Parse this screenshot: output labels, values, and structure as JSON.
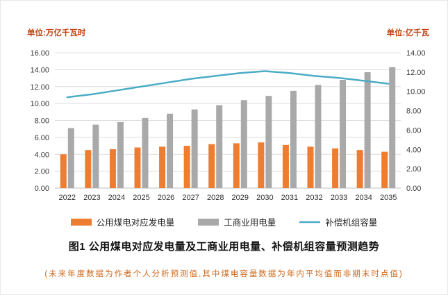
{
  "page": {
    "title": "图1  公用煤电对应发电量及工商业用电量、补偿机组容量预测趋势",
    "footnote": "(未来年度数据为作者个人分析预测值,其中煤电容量数据为年内平均值而非期末时点值)"
  },
  "colors": {
    "unit_label_text": "#c3420f",
    "footnote_text": "#cf6a1d",
    "title_text": "#141414",
    "gridline": "#dcdcdc",
    "axis_line": "#bfbfbf",
    "tick_text": "#3a3a3a"
  },
  "chart_data": {
    "type": "bar",
    "subtype": "grouped-bar-with-line",
    "title": "图1  公用煤电对应发电量及工商业用电量、补偿机组容量预测趋势",
    "footnote": "(未来年度数据为作者个人分析预测值,其中煤电容量数据为年内平均值而非期末时点值)",
    "grid": "horizontal",
    "legend_position": "bottom",
    "left_axis": {
      "unit_label": "单位:万亿千瓦时",
      "min": 0,
      "max": 16,
      "step": 2,
      "ticks": [
        "0.00",
        "2.00",
        "4.00",
        "6.00",
        "8.00",
        "10.00",
        "12.00",
        "14.00",
        "16.00"
      ]
    },
    "right_axis": {
      "unit_label": "单位:亿千瓦",
      "min": 0,
      "max": 14,
      "step": 2,
      "ticks": [
        "0.00",
        "2.00",
        "4.00",
        "6.00",
        "8.00",
        "10.00",
        "12.00",
        "14.00"
      ]
    },
    "categories": [
      "2022",
      "2023",
      "2024",
      "2025",
      "2026",
      "2027",
      "2028",
      "2029",
      "2030",
      "2031",
      "2032",
      "2033",
      "2034",
      "2035"
    ],
    "series": [
      {
        "name": "公用煤电对应发电量",
        "type": "bar",
        "axis": "left",
        "color": "#ED7D31",
        "values": [
          4.0,
          4.5,
          4.6,
          4.8,
          4.9,
          5.0,
          5.2,
          5.3,
          5.4,
          5.1,
          4.9,
          4.7,
          4.5,
          4.3
        ]
      },
      {
        "name": "工商业用电量",
        "type": "bar",
        "axis": "left",
        "color": "#A9A9A9",
        "values": [
          7.1,
          7.5,
          7.8,
          8.3,
          8.8,
          9.3,
          9.8,
          10.4,
          10.9,
          11.5,
          12.2,
          12.8,
          13.7,
          14.3
        ]
      },
      {
        "name": "补偿机组容量",
        "type": "line",
        "axis": "right",
        "color": "#4BACC6",
        "values": [
          9.4,
          9.7,
          10.1,
          10.5,
          10.9,
          11.3,
          11.6,
          11.9,
          12.1,
          11.9,
          11.6,
          11.4,
          11.1,
          10.8
        ]
      }
    ]
  }
}
